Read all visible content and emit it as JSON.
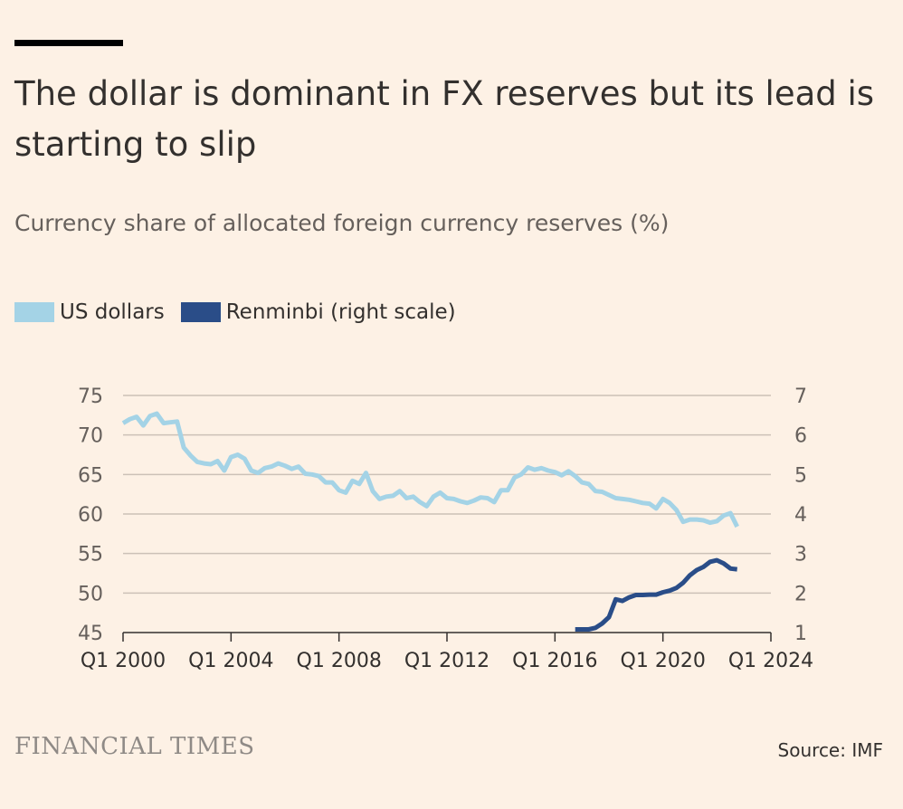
{
  "title": "The dollar is dominant in FX reserves but its lead is starting to slip",
  "subtitle": "Currency share of allocated foreign currency reserves (%)",
  "legend": [
    {
      "label": "US dollars",
      "color": "#a4d3e6"
    },
    {
      "label": "Renminbi (right scale)",
      "color": "#2a4d88"
    }
  ],
  "source": "Source: IMF",
  "brand": "FINANCIAL TIMES",
  "chart_data": {
    "type": "line",
    "title": "The dollar is dominant in FX reserves but its lead is starting to slip",
    "xlabel": "",
    "ylabel": "Currency share of allocated foreign currency reserves (%)",
    "xlim": [
      2000,
      2024
    ],
    "ylim": [
      45,
      75
    ],
    "y2lim": [
      1,
      7
    ],
    "x_ticks": [
      2000,
      2004,
      2008,
      2012,
      2016,
      2020,
      2024
    ],
    "x_tick_labels": [
      "Q1 2000",
      "Q1 2004",
      "Q1 2008",
      "Q1 2012",
      "Q1 2016",
      "Q1 2020",
      "Q1 2024"
    ],
    "y_ticks": [
      45,
      50,
      55,
      60,
      65,
      70,
      75
    ],
    "y2_ticks": [
      1,
      2,
      3,
      4,
      5,
      6,
      7
    ],
    "grid": true,
    "series": [
      {
        "name": "US dollars",
        "axis": "left",
        "color": "#a4d3e6",
        "x": [
          2000.0,
          2000.25,
          2000.5,
          2000.75,
          2001.0,
          2001.25,
          2001.5,
          2001.75,
          2002.0,
          2002.25,
          2002.5,
          2002.75,
          2003.0,
          2003.25,
          2003.5,
          2003.75,
          2004.0,
          2004.25,
          2004.5,
          2004.75,
          2005.0,
          2005.25,
          2005.5,
          2005.75,
          2006.0,
          2006.25,
          2006.5,
          2006.75,
          2007.0,
          2007.25,
          2007.5,
          2007.75,
          2008.0,
          2008.25,
          2008.5,
          2008.75,
          2009.0,
          2009.25,
          2009.5,
          2009.75,
          2010.0,
          2010.25,
          2010.5,
          2010.75,
          2011.0,
          2011.25,
          2011.5,
          2011.75,
          2012.0,
          2012.25,
          2012.5,
          2012.75,
          2013.0,
          2013.25,
          2013.5,
          2013.75,
          2014.0,
          2014.25,
          2014.5,
          2014.75,
          2015.0,
          2015.25,
          2015.5,
          2015.75,
          2016.0,
          2016.25,
          2016.5,
          2016.75,
          2017.0,
          2017.25,
          2017.5,
          2017.75,
          2018.0,
          2018.25,
          2018.5,
          2018.75,
          2019.0,
          2019.25,
          2019.5,
          2019.75,
          2020.0,
          2020.25,
          2020.5,
          2020.75,
          2021.0,
          2021.25,
          2021.5,
          2021.75,
          2022.0,
          2022.25,
          2022.5,
          2022.75
        ],
        "values": [
          71.5,
          72.0,
          72.3,
          71.2,
          72.4,
          72.7,
          71.5,
          71.6,
          71.7,
          68.4,
          67.4,
          66.6,
          66.4,
          66.3,
          66.7,
          65.5,
          67.2,
          67.5,
          67.0,
          65.5,
          65.2,
          65.8,
          66.0,
          66.4,
          66.1,
          65.7,
          66.0,
          65.1,
          65.0,
          64.8,
          64.0,
          64.0,
          63.0,
          62.7,
          64.2,
          63.8,
          65.2,
          62.9,
          61.9,
          62.2,
          62.3,
          62.9,
          62.0,
          62.2,
          61.5,
          61.0,
          62.2,
          62.7,
          62.0,
          61.9,
          61.6,
          61.4,
          61.7,
          62.1,
          62.0,
          61.5,
          63.0,
          63.0,
          64.6,
          65.0,
          65.9,
          65.6,
          65.8,
          65.5,
          65.3,
          64.9,
          65.4,
          64.8,
          64.0,
          63.8,
          62.9,
          62.8,
          62.4,
          62.0,
          61.9,
          61.8,
          61.6,
          61.4,
          61.3,
          60.7,
          61.9,
          61.4,
          60.5,
          59.0,
          59.3,
          59.3,
          59.2,
          58.9,
          59.1,
          59.8,
          60.1,
          58.4
        ]
      },
      {
        "name": "Renminbi (right scale)",
        "axis": "right",
        "color": "#2a4d88",
        "x": [
          2016.75,
          2017.0,
          2017.25,
          2017.5,
          2017.75,
          2018.0,
          2018.25,
          2018.5,
          2018.75,
          2019.0,
          2019.25,
          2019.5,
          2019.75,
          2020.0,
          2020.25,
          2020.5,
          2020.75,
          2021.0,
          2021.25,
          2021.5,
          2021.75,
          2022.0,
          2022.25,
          2022.5,
          2022.75
        ],
        "values": [
          1.08,
          1.08,
          1.08,
          1.12,
          1.23,
          1.39,
          1.84,
          1.8,
          1.89,
          1.95,
          1.95,
          1.96,
          1.96,
          2.02,
          2.06,
          2.13,
          2.26,
          2.45,
          2.58,
          2.66,
          2.79,
          2.83,
          2.75,
          2.62,
          2.6
        ]
      }
    ]
  }
}
